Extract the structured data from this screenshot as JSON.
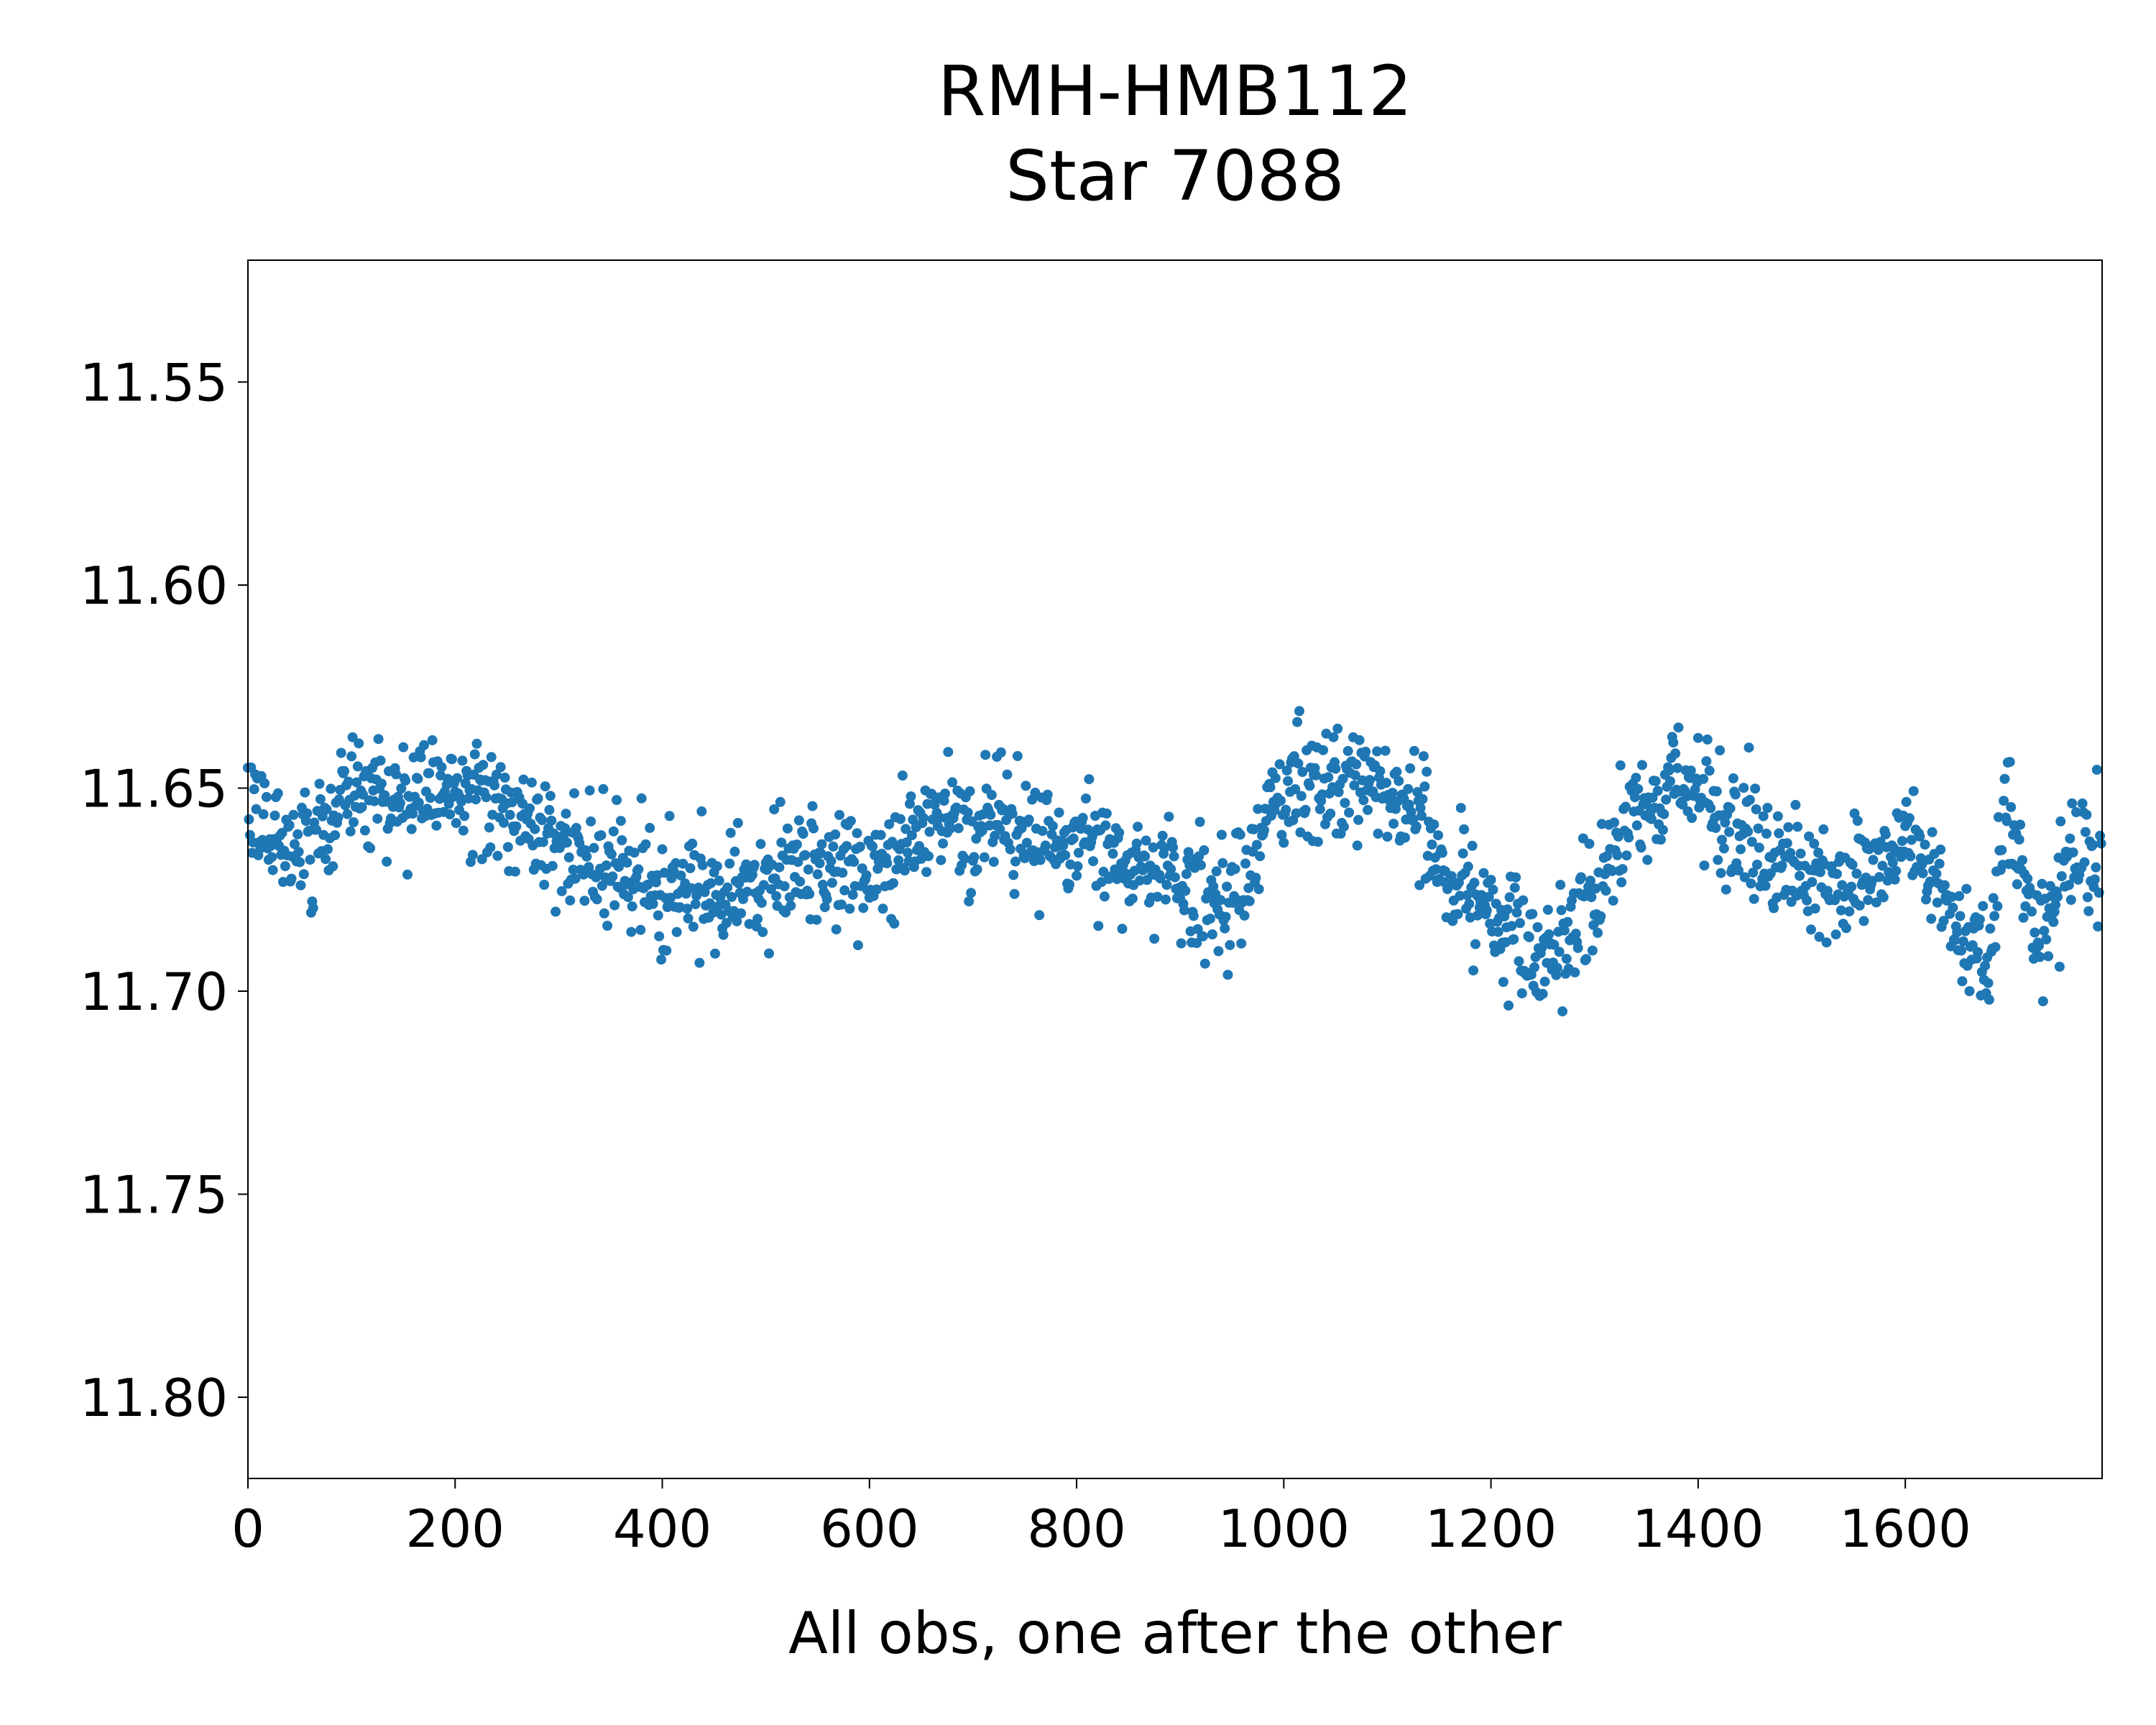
{
  "chart_data": {
    "type": "scatter",
    "title": [
      "RMH-HMB112",
      "Star 7088"
    ],
    "xlabel": "All obs, one after the other",
    "ylabel": "",
    "xlim": [
      0,
      1790
    ],
    "ylim": [
      11.82,
      11.52
    ],
    "y_inverted": true,
    "x_ticks": [
      0,
      200,
      400,
      600,
      800,
      1000,
      1200,
      1400,
      1600
    ],
    "x_tick_labels": [
      "0",
      "200",
      "400",
      "600",
      "800",
      "1000",
      "1200",
      "1400",
      "1600"
    ],
    "y_ticks": [
      11.55,
      11.6,
      11.65,
      11.7,
      11.75,
      11.8
    ],
    "y_tick_labels": [
      "11.55",
      "11.60",
      "11.65",
      "11.70",
      "11.75",
      "11.80"
    ],
    "grid": false,
    "legend": "none",
    "marker_color": "#1f77b4",
    "series": [
      {
        "n_points": 1790,
        "trend_knots": [
          [
            0,
            11.655
          ],
          [
            60,
            11.665
          ],
          [
            100,
            11.65
          ],
          [
            150,
            11.652
          ],
          [
            220,
            11.65
          ],
          [
            280,
            11.662
          ],
          [
            330,
            11.668
          ],
          [
            400,
            11.675
          ],
          [
            460,
            11.677
          ],
          [
            530,
            11.668
          ],
          [
            600,
            11.67
          ],
          [
            660,
            11.658
          ],
          [
            740,
            11.66
          ],
          [
            820,
            11.663
          ],
          [
            880,
            11.672
          ],
          [
            950,
            11.678
          ],
          [
            990,
            11.655
          ],
          [
            1050,
            11.648
          ],
          [
            1110,
            11.652
          ],
          [
            1160,
            11.668
          ],
          [
            1210,
            11.683
          ],
          [
            1260,
            11.69
          ],
          [
            1300,
            11.675
          ],
          [
            1340,
            11.655
          ],
          [
            1380,
            11.648
          ],
          [
            1430,
            11.66
          ],
          [
            1500,
            11.672
          ],
          [
            1560,
            11.675
          ],
          [
            1600,
            11.66
          ],
          [
            1640,
            11.68
          ],
          [
            1680,
            11.695
          ],
          [
            1700,
            11.655
          ],
          [
            1730,
            11.69
          ],
          [
            1760,
            11.665
          ],
          [
            1790,
            11.67
          ]
        ],
        "scatter_sigma": 0.007
      }
    ]
  }
}
